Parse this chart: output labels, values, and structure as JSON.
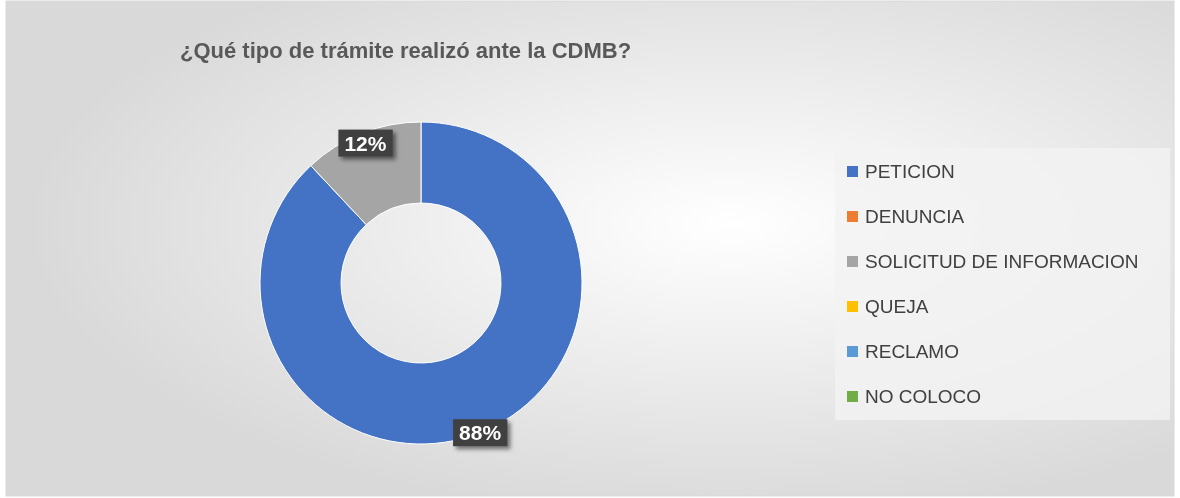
{
  "chart_data": {
    "type": "donut",
    "title": "¿Qué tipo de trámite realizó ante la CDMB?",
    "categories": [
      "PETICION",
      "DENUNCIA",
      "SOLICITUD DE INFORMACION",
      "QUEJA",
      "RECLAMO",
      "NO COLOCO"
    ],
    "values": [
      88,
      0,
      12,
      0,
      0,
      0
    ],
    "colors": [
      "#4472c4",
      "#ed7d31",
      "#a5a5a5",
      "#ffc000",
      "#5b9bd5",
      "#70ad47"
    ],
    "value_labels": [
      "88%",
      null,
      "12%",
      null,
      null,
      null
    ],
    "legend": "right"
  }
}
